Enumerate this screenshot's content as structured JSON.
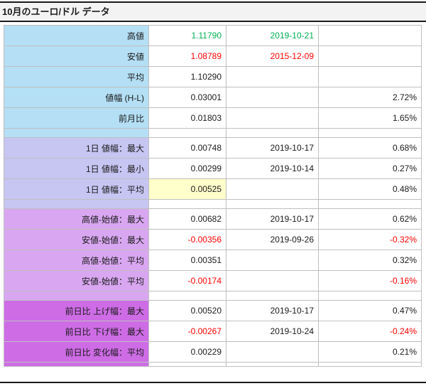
{
  "colors": {
    "green": "#00B050",
    "red": "#FF0000",
    "text": "#1A1A1A",
    "grid": "#BFBFBF",
    "rule": "#1A1A1A",
    "title_bg": "#F3F3F3",
    "highlight_bg": "#FFFFCC",
    "group1_bg": "#B4DFF5",
    "group2_bg": "#C7C5F2",
    "group3_bg": "#D9A7F1",
    "group4_bg": "#CE6CE6"
  },
  "chart_data": {
    "type": "table",
    "title": "10月のユーロ/ドル データ",
    "rows": [
      {
        "label": "高値",
        "value": "1.11790",
        "date": "2019-10-21",
        "pct": "",
        "value_color": "green",
        "date_color": "green",
        "group": 1
      },
      {
        "label": "安値",
        "value": "1.08789",
        "date": "2015-12-09",
        "pct": "",
        "value_color": "red",
        "date_color": "red",
        "group": 1
      },
      {
        "label": "平均",
        "value": "1.10290",
        "date": "",
        "pct": "",
        "group": 1
      },
      {
        "label": "値幅 (H-L)",
        "value": "0.03001",
        "date": "",
        "pct": "2.72%",
        "group": 1
      },
      {
        "label": "前月比",
        "value": "0.01803",
        "date": "",
        "pct": "1.65%",
        "group": 1
      },
      {
        "spacer": true,
        "group": 1
      },
      {
        "label": "1日 値幅：最大",
        "value": "0.00748",
        "date": "2019-10-17",
        "pct": "0.68%",
        "group": 2
      },
      {
        "label": "1日 値幅：最小",
        "value": "0.00299",
        "date": "2019-10-14",
        "pct": "0.27%",
        "group": 2
      },
      {
        "label": "1日 値幅：平均",
        "value": "0.00525",
        "date": "",
        "pct": "0.48%",
        "value_highlight": true,
        "group": 2
      },
      {
        "spacer": true,
        "group": 2
      },
      {
        "label": "高値-始値：最大",
        "value": "0.00682",
        "date": "2019-10-17",
        "pct": "0.62%",
        "group": 3
      },
      {
        "label": "安値-始値：最大",
        "value": "-0.00356",
        "date": "2019-09-26",
        "pct": "-0.32%",
        "value_color": "red",
        "pct_color": "red",
        "group": 3
      },
      {
        "label": "高値-始値：平均",
        "value": "0.00351",
        "date": "",
        "pct": "0.32%",
        "group": 3
      },
      {
        "label": "安値-始値：平均",
        "value": "-0.00174",
        "date": "",
        "pct": "-0.16%",
        "value_color": "red",
        "pct_color": "red",
        "group": 3
      },
      {
        "spacer": true,
        "group": 3
      },
      {
        "label": "前日比 上げ幅：最大",
        "value": "0.00520",
        "date": "2019-10-17",
        "pct": "0.47%",
        "group": 4
      },
      {
        "label": "前日比 下げ幅：最大",
        "value": "-0.00267",
        "date": "2019-10-24",
        "pct": "-0.24%",
        "value_color": "red",
        "pct_color": "red",
        "group": 4
      },
      {
        "label": "前日比 変化幅：平均",
        "value": "0.00229",
        "date": "",
        "pct": "0.21%",
        "group": 4
      },
      {
        "spacer": true,
        "thin": true,
        "group": 4
      }
    ]
  }
}
